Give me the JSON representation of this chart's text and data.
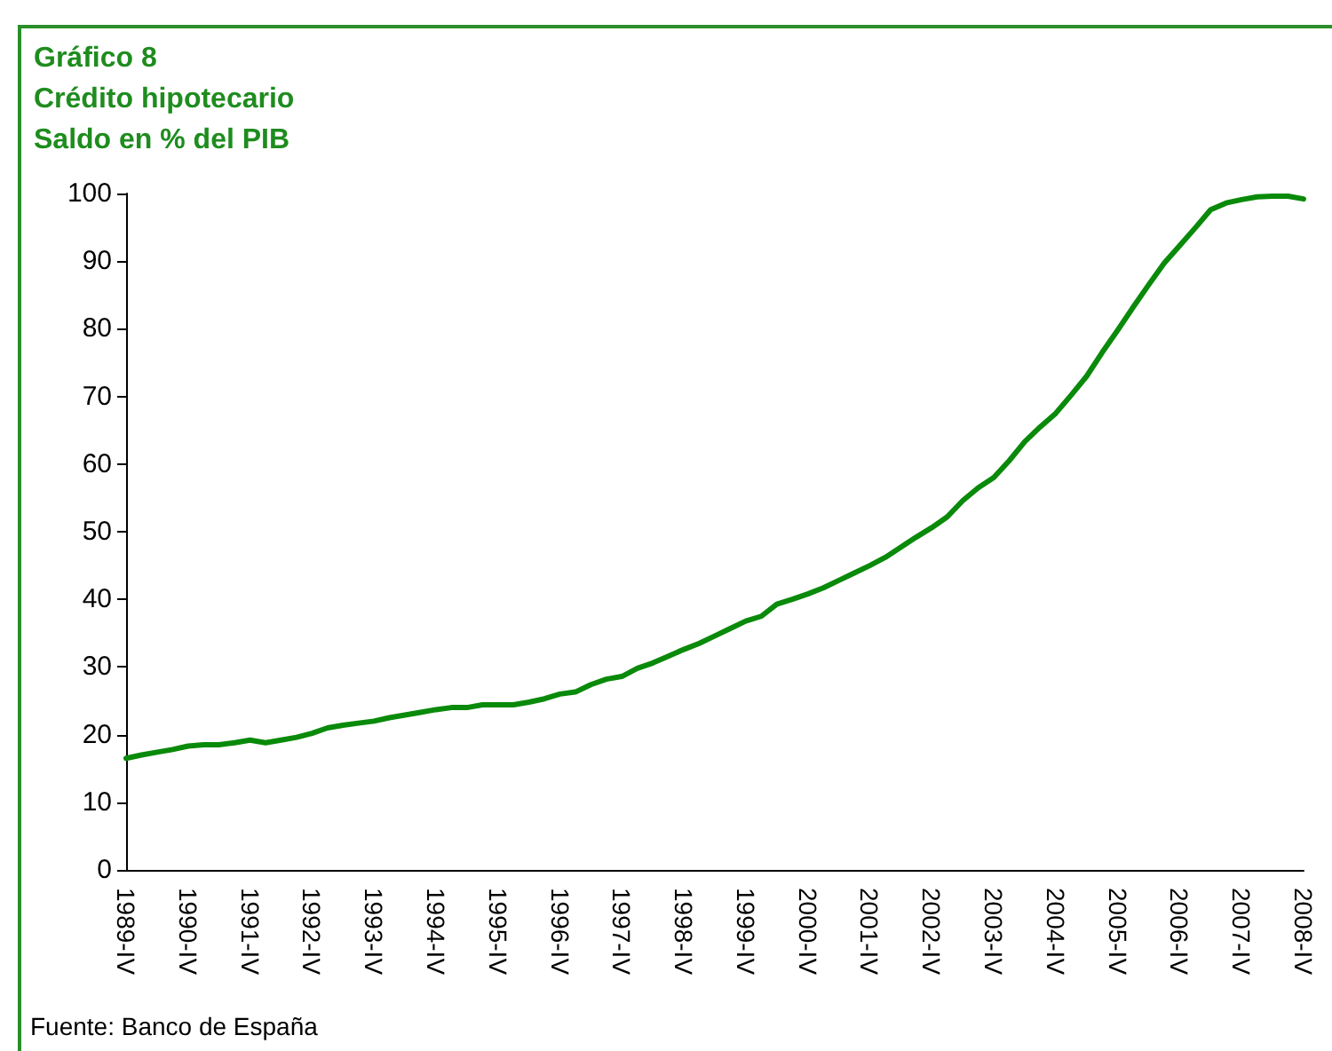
{
  "chart_data": {
    "type": "line",
    "title": "Gráfico 8",
    "subtitle": "Crédito hipotecario",
    "ylabel": "Saldo en % del PIB",
    "annotations": [
      "Fuente: Banco de España"
    ],
    "categories": [
      "1989-IV",
      null,
      null,
      null,
      "1990-IV",
      null,
      null,
      null,
      "1991-IV",
      null,
      null,
      null,
      "1992-IV",
      null,
      null,
      null,
      "1993-IV",
      null,
      null,
      null,
      "1994-IV",
      null,
      null,
      null,
      "1995-IV",
      null,
      null,
      null,
      "1996-IV",
      null,
      null,
      null,
      "1997-IV",
      null,
      null,
      null,
      "1998-IV",
      null,
      null,
      null,
      "1999-IV",
      null,
      null,
      null,
      "2000-IV",
      null,
      null,
      null,
      "2001-IV",
      null,
      null,
      null,
      "2002-IV",
      null,
      null,
      null,
      "2003-IV",
      null,
      null,
      null,
      "2004-IV",
      null,
      null,
      null,
      "2005-IV",
      null,
      null,
      null,
      "2006-IV",
      null,
      null,
      null,
      "2007-IV",
      null,
      null,
      null,
      "2008-IV"
    ],
    "series": [
      {
        "color": "#0a8a0a",
        "values": [
          16.5,
          17.0,
          17.4,
          17.8,
          18.3,
          18.5,
          18.5,
          18.8,
          19.2,
          18.8,
          19.2,
          19.6,
          20.2,
          21.0,
          21.4,
          21.7,
          22.0,
          22.5,
          22.9,
          23.3,
          23.7,
          24.0,
          24.0,
          24.4,
          24.4,
          24.4,
          24.8,
          25.3,
          26.0,
          26.3,
          27.4,
          28.2,
          28.6,
          29.8,
          30.6,
          31.6,
          32.6,
          33.5,
          34.6,
          35.7,
          36.8,
          37.5,
          39.3,
          40.0,
          40.8,
          41.7,
          42.8,
          43.9,
          45.0,
          46.2,
          47.7,
          49.2,
          50.6,
          52.2,
          54.6,
          56.5,
          58.0,
          60.5,
          63.3,
          65.5,
          67.5,
          70.2,
          73.0,
          76.5,
          79.8,
          83.2,
          86.5,
          89.7,
          92.3,
          94.9,
          97.6,
          98.6,
          99.1,
          99.5,
          99.6,
          99.6,
          99.2
        ]
      }
    ],
    "ylim": [
      0,
      100
    ],
    "yticks": [
      0,
      10,
      20,
      30,
      40,
      50,
      60,
      70,
      80,
      90,
      100
    ],
    "marker": "none",
    "line_style": "solid"
  }
}
